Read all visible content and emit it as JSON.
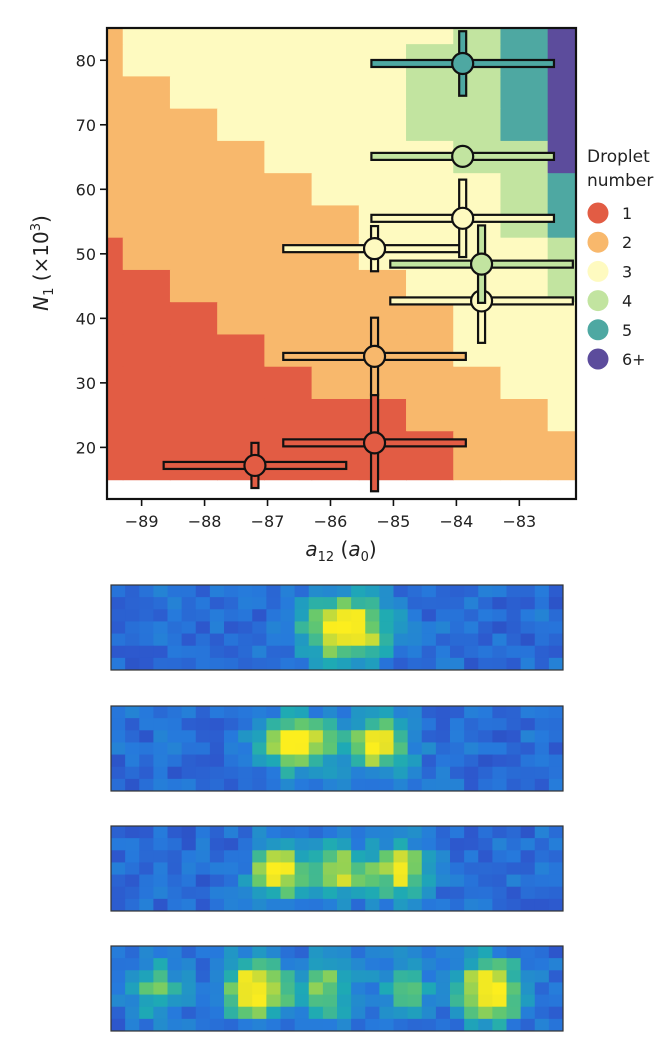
{
  "chart_data": [
    {
      "type": "heatmap",
      "title": "",
      "xlabel": {
        "main": "a",
        "sub": "12",
        "after": " (",
        "unit": "a",
        "unit_sub": "0",
        "close": ")"
      },
      "ylabel": {
        "main": "N",
        "sub": "1",
        "after": " (×10",
        "sup": "3",
        "close": ")"
      },
      "xlim": [
        -89.55,
        -82.1
      ],
      "ylim": [
        12,
        85
      ],
      "x_ticks": [
        -89,
        -88,
        -87,
        -86,
        -85,
        -84,
        -83
      ],
      "y_ticks": [
        20,
        30,
        40,
        50,
        60,
        70,
        80
      ],
      "grid": false,
      "legend": {
        "title_lines": [
          "Droplet",
          "number"
        ],
        "placement": "right",
        "entries": [
          {
            "label": "1",
            "value": 1,
            "color": "#e25c44"
          },
          {
            "label": "2",
            "value": 2,
            "color": "#f8b86c"
          },
          {
            "label": "3",
            "value": 3,
            "color": "#fefac0"
          },
          {
            "label": "4",
            "value": 4,
            "color": "#c2e4a0"
          },
          {
            "label": "5",
            "value": 5,
            "color": "#4ea8a2"
          },
          {
            "label": "6+",
            "value": 6,
            "color": "#5c4c9c"
          }
        ]
      },
      "map_columns": [
        -89.55,
        -89.3,
        -88.55,
        -87.8,
        -87.05,
        -86.3,
        -85.55,
        -84.8,
        -84.05,
        -83.3,
        -82.55,
        -82.1
      ],
      "map_rows": [
        85,
        82.5,
        77.5,
        72.5,
        67.5,
        62.5,
        57.5,
        52.5,
        47.5,
        42.5,
        37.5,
        32.5,
        27.5,
        22.5,
        17.5,
        15
      ],
      "map_values": [
        [
          2,
          3,
          3,
          3,
          3,
          3,
          3,
          3,
          4,
          5,
          6
        ],
        [
          2,
          3,
          3,
          3,
          3,
          3,
          3,
          4,
          4,
          5,
          6
        ],
        [
          2,
          2,
          3,
          3,
          3,
          3,
          3,
          4,
          4,
          5,
          6
        ],
        [
          2,
          2,
          2,
          3,
          3,
          3,
          3,
          4,
          4,
          5,
          6
        ],
        [
          2,
          2,
          2,
          2,
          3,
          3,
          3,
          3,
          4,
          4,
          6
        ],
        [
          2,
          2,
          2,
          2,
          2,
          3,
          3,
          3,
          3,
          4,
          5
        ],
        [
          2,
          2,
          2,
          2,
          2,
          2,
          3,
          3,
          3,
          4,
          5
        ],
        [
          1,
          2,
          2,
          2,
          2,
          2,
          3,
          3,
          3,
          3,
          4
        ],
        [
          1,
          1,
          2,
          2,
          2,
          2,
          2,
          3,
          3,
          3,
          4
        ],
        [
          1,
          1,
          1,
          2,
          2,
          2,
          2,
          2,
          3,
          3,
          3
        ],
        [
          1,
          1,
          1,
          1,
          2,
          2,
          2,
          2,
          3,
          3,
          3
        ],
        [
          1,
          1,
          1,
          1,
          1,
          2,
          2,
          2,
          2,
          3,
          3
        ],
        [
          1,
          1,
          1,
          1,
          1,
          1,
          1,
          2,
          2,
          2,
          3
        ],
        [
          1,
          1,
          1,
          1,
          1,
          1,
          1,
          1,
          2,
          2,
          2
        ],
        [
          1,
          1,
          1,
          1,
          1,
          1,
          1,
          1,
          2,
          2,
          2
        ]
      ],
      "points": [
        {
          "x": -87.2,
          "y": 17.2,
          "x_err": 1.45,
          "y_err": 3.5,
          "value": 1
        },
        {
          "x": -85.3,
          "y": 20.7,
          "x_err": 1.45,
          "y_err": 7.5,
          "value": 1
        },
        {
          "x": -85.3,
          "y": 34.1,
          "x_err": 1.45,
          "y_err": 6.0,
          "value": 2
        },
        {
          "x": -85.3,
          "y": 50.8,
          "x_err": 1.45,
          "y_err": 3.5,
          "value": 3
        },
        {
          "x": -83.9,
          "y": 55.5,
          "x_err": 1.45,
          "y_err": 6.0,
          "value": 3
        },
        {
          "x": -83.6,
          "y": 42.7,
          "x_err": 1.45,
          "y_err": 6.5,
          "value": 3
        },
        {
          "x": -83.6,
          "y": 48.4,
          "x_err": 1.45,
          "y_err": 6.0,
          "value": 4
        },
        {
          "x": -83.9,
          "y": 65.1,
          "x_err": 1.45,
          "y_err": 0.7,
          "value": 4
        },
        {
          "x": -83.9,
          "y": 79.5,
          "x_err": 1.45,
          "y_err": 5.0,
          "value": 5
        }
      ]
    },
    {
      "type": "heatmap",
      "panels": [
        {
          "name": "image-1",
          "blobs": [
            {
              "x": 0.52,
              "y": 0.5,
              "amplitude": 1.0,
              "sigma_x": 0.065,
              "sigma_y": 0.26
            }
          ]
        },
        {
          "name": "image-2",
          "blobs": [
            {
              "x": 0.41,
              "y": 0.44,
              "amplitude": 1.0,
              "sigma_x": 0.055,
              "sigma_y": 0.22
            },
            {
              "x": 0.59,
              "y": 0.45,
              "amplitude": 0.85,
              "sigma_x": 0.05,
              "sigma_y": 0.22
            }
          ]
        },
        {
          "name": "image-3",
          "blobs": [
            {
              "x": 0.37,
              "y": 0.52,
              "amplitude": 0.9,
              "sigma_x": 0.04,
              "sigma_y": 0.22
            },
            {
              "x": 0.5,
              "y": 0.52,
              "amplitude": 0.72,
              "sigma_x": 0.045,
              "sigma_y": 0.22
            },
            {
              "x": 0.64,
              "y": 0.52,
              "amplitude": 0.82,
              "sigma_x": 0.045,
              "sigma_y": 0.22
            }
          ]
        },
        {
          "name": "image-4",
          "blobs": [
            {
              "x": 0.1,
              "y": 0.5,
              "amplitude": 0.55,
              "sigma_x": 0.04,
              "sigma_y": 0.24
            },
            {
              "x": 0.32,
              "y": 0.5,
              "amplitude": 1.0,
              "sigma_x": 0.05,
              "sigma_y": 0.24
            },
            {
              "x": 0.48,
              "y": 0.5,
              "amplitude": 0.62,
              "sigma_x": 0.045,
              "sigma_y": 0.24
            },
            {
              "x": 0.65,
              "y": 0.5,
              "amplitude": 0.5,
              "sigma_x": 0.04,
              "sigma_y": 0.24
            },
            {
              "x": 0.84,
              "y": 0.52,
              "amplitude": 1.0,
              "sigma_x": 0.05,
              "sigma_y": 0.26
            }
          ]
        }
      ]
    }
  ]
}
